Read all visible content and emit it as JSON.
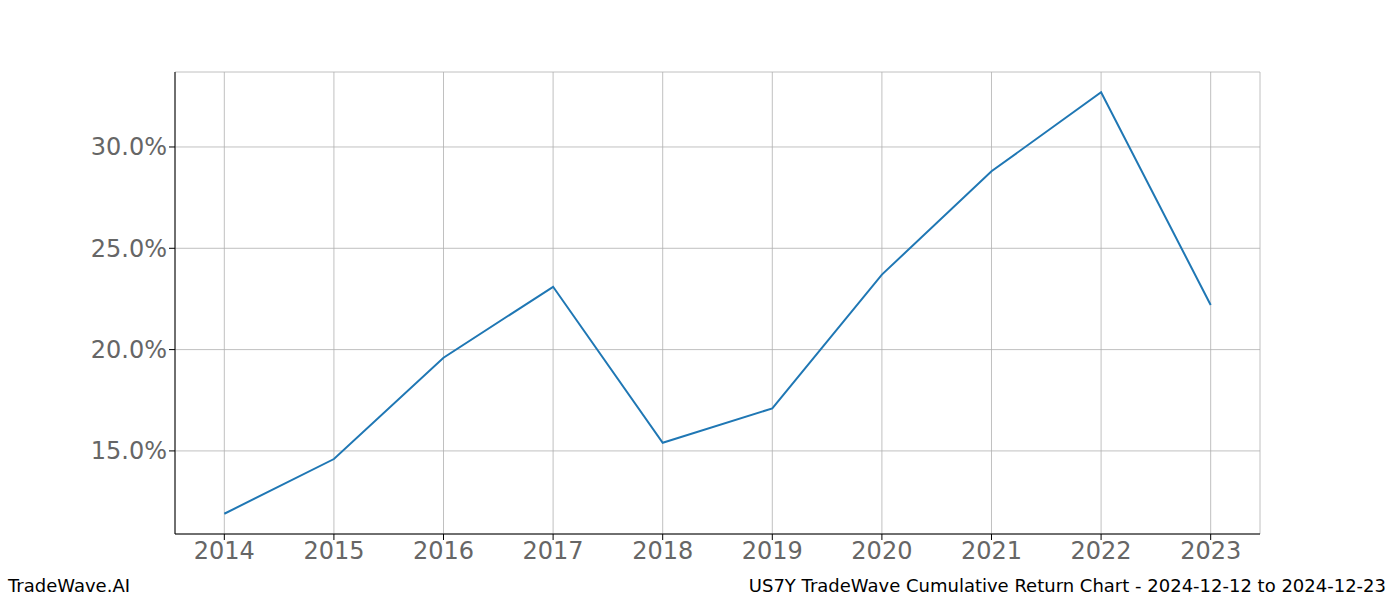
{
  "chart_data": {
    "type": "line",
    "title": "US7Y TradeWave Cumulative Return Chart - 2024-12-12 to 2024-12-23",
    "annotations": [
      "TradeWave.AI"
    ],
    "x": [
      2014,
      2015,
      2016,
      2017,
      2018,
      2019,
      2020,
      2021,
      2022,
      2023
    ],
    "values": [
      11.9,
      14.6,
      19.6,
      23.1,
      15.4,
      17.1,
      23.7,
      28.8,
      32.7,
      22.2
    ],
    "color": "#1f77b4",
    "xlim": [
      2013.55,
      2023.45
    ],
    "xticks": [
      2014,
      2015,
      2016,
      2017,
      2018,
      2019,
      2020,
      2021,
      2022,
      2023
    ],
    "ylim": [
      10.9,
      33.7
    ],
    "yticks": [
      {
        "value": 15,
        "label": "15.0%"
      },
      {
        "value": 20,
        "label": "20.0%"
      },
      {
        "value": 25,
        "label": "25.0%"
      },
      {
        "value": 30,
        "label": "30.0%"
      }
    ],
    "grid": true
  }
}
